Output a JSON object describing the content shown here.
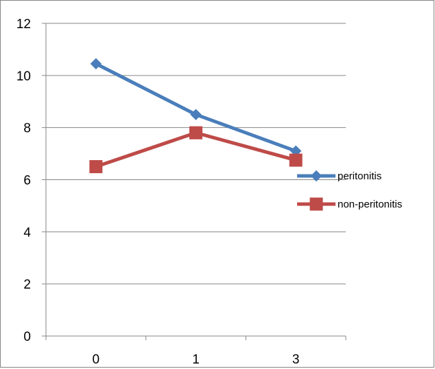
{
  "chart_data": {
    "type": "line",
    "title": "",
    "xlabel": "",
    "ylabel": "",
    "categories": [
      "0",
      "1",
      "3"
    ],
    "ylim": [
      0,
      12
    ],
    "yticks": [
      0,
      2,
      4,
      6,
      8,
      10,
      12
    ],
    "grid": true,
    "legend_position": "right",
    "series": [
      {
        "name": "peritonitis",
        "values": [
          10.45,
          8.5,
          7.1
        ],
        "color": "#4a7ebb",
        "marker": "diamond"
      },
      {
        "name": "non-peritonitis",
        "values": [
          6.5,
          7.8,
          6.75
        ],
        "color": "#be4b48",
        "marker": "square"
      }
    ]
  }
}
